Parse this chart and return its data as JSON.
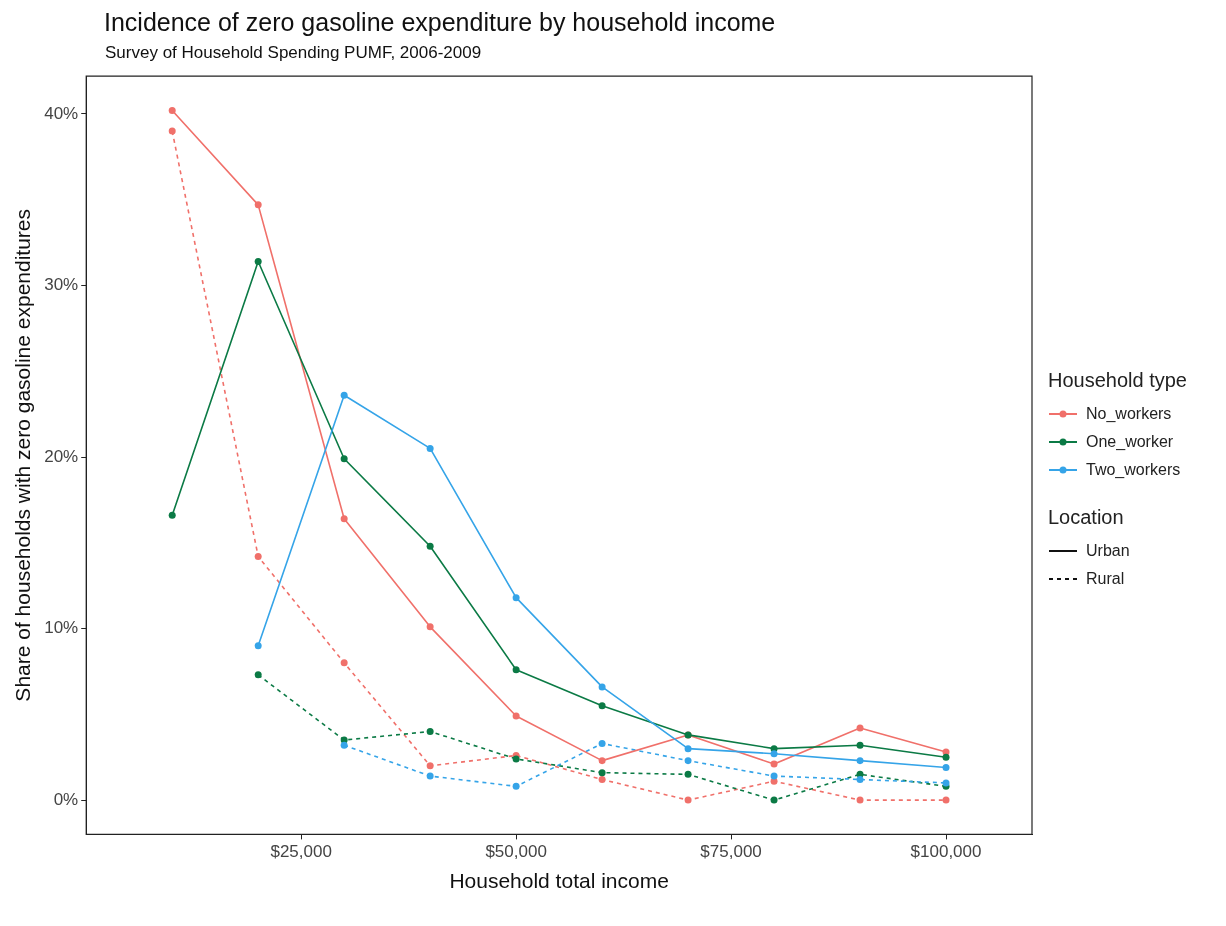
{
  "chart_data": {
    "type": "line",
    "title": "Incidence of zero gasoline expenditure by household income",
    "subtitle": "Survey of Household Spending PUMF, 2006-2009",
    "xlabel": "Household total income",
    "ylabel": "Share of households with zero gasoline expenditures",
    "legend_title": [
      "Household type",
      "Location"
    ],
    "annotations": [
      "Urban",
      "Rural"
    ],
    "x": [
      10000,
      20000,
      30000,
      40000,
      50000,
      60000,
      70000,
      80000,
      90000,
      100000
    ],
    "xlim": [
      0,
      110000
    ],
    "xticks": [
      {
        "value": 25000,
        "label": "$25,000"
      },
      {
        "value": 50000,
        "label": "$50,000"
      },
      {
        "value": 75000,
        "label": "$75,000"
      },
      {
        "value": 100000,
        "label": "$100,000"
      }
    ],
    "ylim": [
      -2,
      42.2
    ],
    "yticks": [
      {
        "value": 0,
        "label": "0%"
      },
      {
        "value": 10,
        "label": "10%"
      },
      {
        "value": 20,
        "label": "20%"
      },
      {
        "value": 30,
        "label": "30%"
      },
      {
        "value": 40,
        "label": "40%"
      }
    ],
    "grid": false,
    "legend": "right",
    "marker": "circle",
    "series": [
      {
        "name": "No_workers",
        "color": "#f0706a",
        "line_style": "solid",
        "values": [
          40.2,
          34.7,
          16.4,
          10.1,
          4.9,
          2.3,
          3.8,
          2.1,
          4.2,
          2.8
        ]
      },
      {
        "name": "One_worker",
        "color": "#0b7a45",
        "line_style": "solid",
        "values": [
          16.6,
          31.4,
          19.9,
          14.8,
          7.6,
          5.5,
          3.8,
          3.0,
          3.2,
          2.5
        ]
      },
      {
        "name": "Two_workers",
        "color": "#35a4e8",
        "line_style": "solid",
        "values": [
          null,
          9.0,
          23.6,
          20.5,
          11.8,
          6.6,
          3.0,
          2.7,
          2.3,
          1.9
        ]
      },
      {
        "color": "#f0706a",
        "line_style": "dashed",
        "values": [
          39.0,
          14.2,
          8.0,
          2.0,
          2.6,
          1.2,
          0,
          1.1,
          0,
          0
        ]
      },
      {
        "color": "#0b7a45",
        "line_style": "dashed",
        "values": [
          null,
          7.3,
          3.5,
          4.0,
          2.4,
          1.6,
          1.5,
          0,
          1.5,
          0.8
        ]
      },
      {
        "color": "#35a4e8",
        "line_style": "dashed",
        "values": [
          null,
          null,
          3.2,
          1.4,
          0.8,
          3.3,
          2.3,
          1.4,
          1.2,
          1.0
        ]
      }
    ]
  }
}
